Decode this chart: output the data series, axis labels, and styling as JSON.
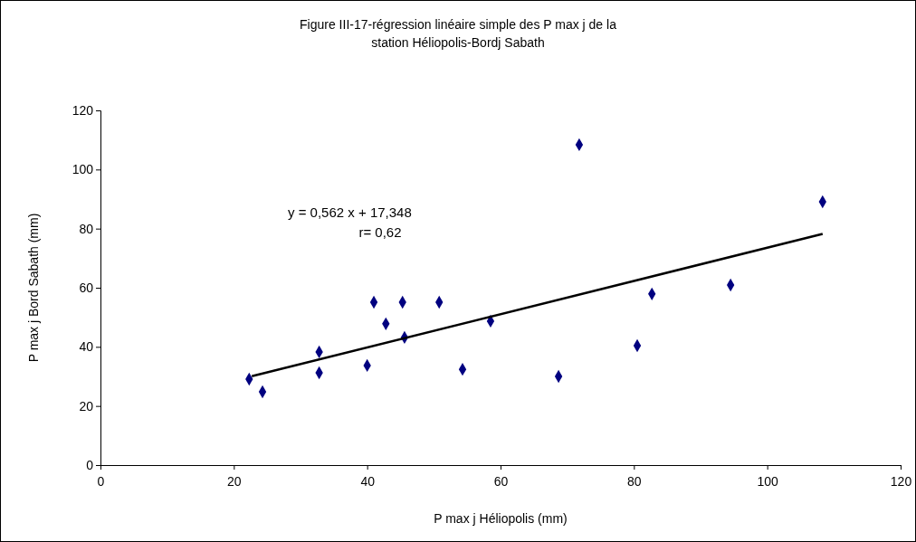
{
  "chart_data": {
    "type": "scatter",
    "title": "Figure III-17-régression linéaire simple des P max j de la station Héliopolis-Bordj Sabath",
    "xlabel": "P max j Héliopolis (mm)",
    "ylabel": "P max j Bord Sabath (mm)",
    "xlim": [
      0,
      120
    ],
    "xticks": [
      0,
      20,
      40,
      60,
      80,
      100,
      120
    ],
    "ylim": [
      0,
      120
    ],
    "yticks": [
      0,
      20,
      40,
      60,
      80,
      100,
      120
    ],
    "grid": false,
    "marker": "diamond",
    "annotations": [
      "y =  0,562 x  + 17,348",
      "r=   0,62"
    ],
    "series": [
      {
        "color": "#000080",
        "x": [
          22.3,
          24.3,
          32.8,
          32.8,
          40.0,
          41.0,
          42.8,
          45.3,
          45.6,
          50.8,
          54.3,
          58.5,
          68.7,
          71.8,
          80.5,
          82.7,
          94.5,
          108.3
        ],
        "values": [
          29.1,
          24.8,
          38.3,
          31.2,
          33.7,
          55.1,
          47.8,
          55.1,
          43.2,
          55.1,
          32.4,
          48.7,
          30.0,
          108.4,
          40.4,
          57.9,
          60.9,
          89.1
        ]
      },
      {
        "type": "line",
        "color": "#000000",
        "line_style": "solid",
        "marker": "none",
        "x": [
          22.7,
          108.3
        ],
        "values": [
          30.1,
          78.2
        ]
      }
    ]
  }
}
